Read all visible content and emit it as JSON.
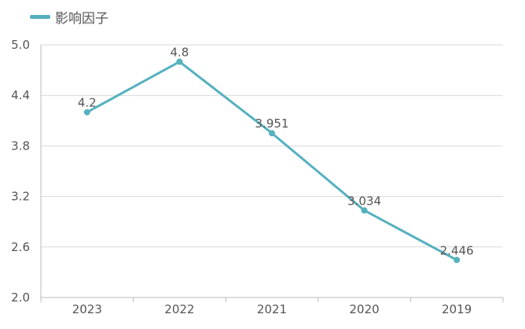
{
  "colors": {
    "series": "#56b1bf",
    "grid": "#d9d9d9",
    "axis": "#bbbbbb",
    "text": "#555555"
  },
  "chart_data": {
    "type": "line",
    "categories": [
      "2023",
      "2022",
      "2021",
      "2020",
      "2019"
    ],
    "series": [
      {
        "name": "影响因子",
        "values": [
          4.2,
          4.8,
          3.951,
          3.034,
          2.446
        ],
        "labels": [
          "4.2",
          "4.8",
          "3.951",
          "3.034",
          "2.446"
        ]
      }
    ],
    "y_ticks": [
      "2.0",
      "2.6",
      "3.2",
      "3.8",
      "4.4",
      "5.0"
    ],
    "ylim": [
      2.0,
      5.0
    ],
    "grid": true,
    "legend": "top-left",
    "title": "",
    "xlabel": "",
    "ylabel": ""
  }
}
